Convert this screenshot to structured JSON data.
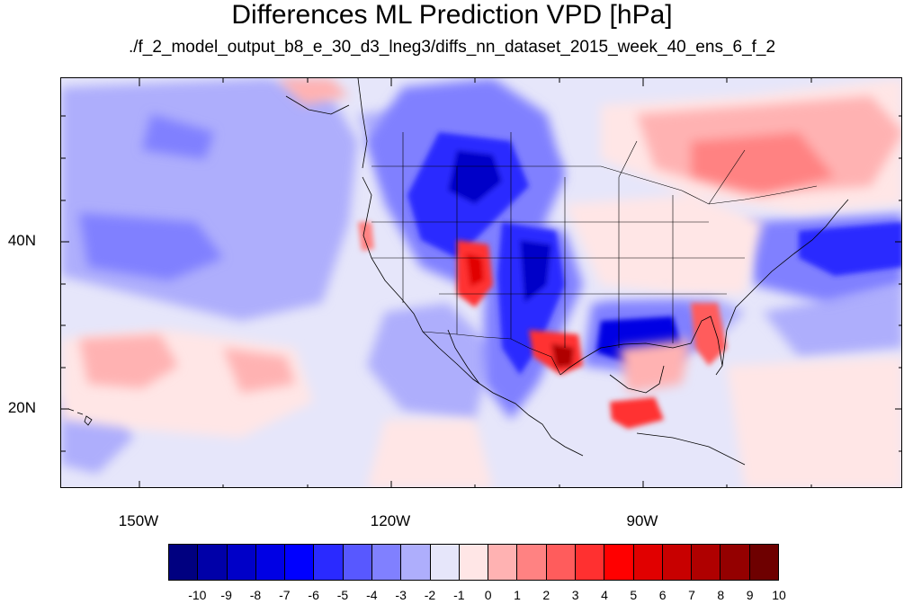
{
  "title": "Differences ML Prediction VPD [hPa]",
  "subtitle": "./f_2_model_output_b8_e_30_d3_lneg3/diffs_nn_dataset_2015_week_40_ens_6_f_2",
  "map": {
    "projection": "cylindrical equidistant",
    "lon_range": [
      -159.4,
      -59.1
    ],
    "lat_range": [
      10.7,
      59.6
    ],
    "lon_labels": [
      "150W",
      "120W",
      "90W"
    ],
    "lat_labels": [
      "40N",
      "20N"
    ]
  },
  "features": {
    "background_field": "#e6e6fa",
    "negative_regions": [
      "Pacific northwest of Hawaii",
      "Great Basin / Rockies",
      "Mexican Plateau",
      "Gulf of Mexico",
      "Mid-Atlantic coast"
    ],
    "positive_regions": [
      "Four Corners / Colorado Plateau",
      "Texas Gulf coast",
      "Florida peninsula",
      "Yucatan / Central America",
      "Eastern Canada",
      "Subtropical Pacific"
    ]
  },
  "colorbar": {
    "colors": [
      "#000080",
      "#0000a8",
      "#0000c8",
      "#0000e4",
      "#0000ff",
      "#2a2aff",
      "#5858ff",
      "#8080ff",
      "#aeaefc",
      "#e6e6fa",
      "#ffe6e6",
      "#ffb2b2",
      "#ff8282",
      "#ff5c5c",
      "#ff3030",
      "#ff0000",
      "#e10000",
      "#c80000",
      "#af0000",
      "#940000",
      "#6e0000"
    ],
    "labels": [
      "-10",
      "-9",
      "-8",
      "-7",
      "-6",
      "-5",
      "-4",
      "-3",
      "-2",
      "-1",
      "0",
      "1",
      "2",
      "3",
      "4",
      "5",
      "6",
      "7",
      "8",
      "9",
      "10"
    ]
  }
}
